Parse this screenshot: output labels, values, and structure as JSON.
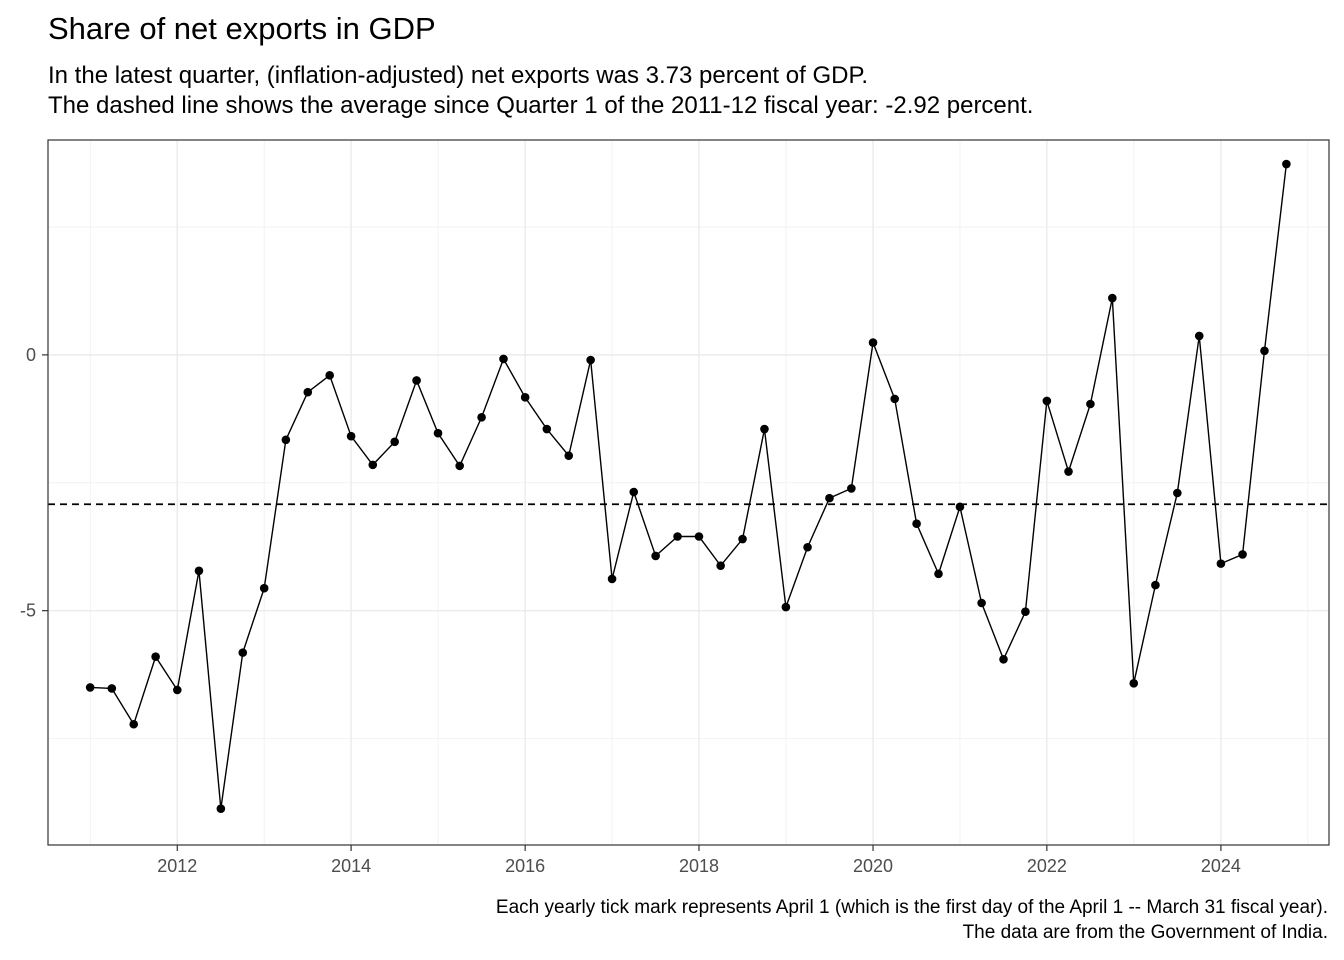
{
  "title": "Share of net exports in GDP",
  "subtitle_line1": "In the latest quarter, (inflation-adjusted) net exports was 3.73 percent of GDP.",
  "subtitle_line2": "The dashed line shows the average since Quarter 1 of the 2011-12 fiscal year: -2.92 percent.",
  "caption_line1": "Each yearly tick mark represents April 1 (which is the first day of the April 1 -- March 31 fiscal year).",
  "caption_line2": "The data are from the Government of India.",
  "chart_data": {
    "type": "line",
    "title": "Share of net exports in GDP",
    "xlabel": "",
    "ylabel": "",
    "x_units": "date (each yearly tick = April 1)",
    "xlim": [
      "2010-10-06",
      "2025-06-29"
    ],
    "ylim": [
      -9.58,
      4.2
    ],
    "x_ticks": [
      "2012",
      "2014",
      "2016",
      "2018",
      "2020",
      "2022",
      "2024"
    ],
    "x_tick_dates": [
      "2012-04-01",
      "2014-04-01",
      "2016-04-01",
      "2018-04-01",
      "2020-04-01",
      "2022-04-01",
      "2024-04-01"
    ],
    "y_ticks": [
      0,
      -5
    ],
    "y_tick_labels": [
      "0",
      "-5"
    ],
    "grid": true,
    "average_line": {
      "value": -2.92,
      "style": "dashed"
    },
    "series": [
      {
        "x": [
          "2011-04-01",
          "2011-07-01",
          "2011-10-01",
          "2012-01-01",
          "2012-04-01",
          "2012-07-01",
          "2012-10-01",
          "2013-01-01",
          "2013-04-01",
          "2013-07-01",
          "2013-10-01",
          "2014-01-01",
          "2014-04-01",
          "2014-07-01",
          "2014-10-01",
          "2015-01-01",
          "2015-04-01",
          "2015-07-01",
          "2015-10-01",
          "2016-01-01",
          "2016-04-01",
          "2016-07-01",
          "2016-10-01",
          "2017-01-01",
          "2017-04-01",
          "2017-07-01",
          "2017-10-01",
          "2018-01-01",
          "2018-04-01",
          "2018-07-01",
          "2018-10-01",
          "2019-01-01",
          "2019-04-01",
          "2019-07-01",
          "2019-10-01",
          "2020-01-01",
          "2020-04-01",
          "2020-07-01",
          "2020-10-01",
          "2021-01-01",
          "2021-04-01",
          "2021-07-01",
          "2021-10-01",
          "2022-01-01",
          "2022-04-01",
          "2022-07-01",
          "2022-10-01",
          "2023-01-01",
          "2023-04-01",
          "2023-07-01",
          "2023-10-01",
          "2024-01-01",
          "2024-04-01",
          "2024-07-01",
          "2024-10-01",
          "2025-01-01"
        ],
        "values": [
          -6.5,
          -6.52,
          -7.22,
          -5.9,
          -6.55,
          -4.22,
          -8.87,
          -5.82,
          -4.56,
          -1.66,
          -0.73,
          -0.4,
          -1.59,
          -2.15,
          -1.7,
          -0.5,
          -1.53,
          -2.17,
          -1.22,
          -0.08,
          -0.83,
          -1.45,
          -1.97,
          -0.1,
          -4.38,
          -2.68,
          -3.93,
          -3.55,
          -3.55,
          -4.12,
          -3.6,
          -1.45,
          -4.93,
          -3.76,
          -2.8,
          -2.61,
          0.24,
          -0.86,
          -3.3,
          -4.28,
          -2.97,
          -4.85,
          -5.95,
          -5.02,
          -0.9,
          -2.28,
          -0.96,
          1.11,
          -6.42,
          -4.5,
          -2.7,
          0.37,
          -4.08,
          -3.9,
          0.08,
          3.73
        ]
      }
    ]
  }
}
